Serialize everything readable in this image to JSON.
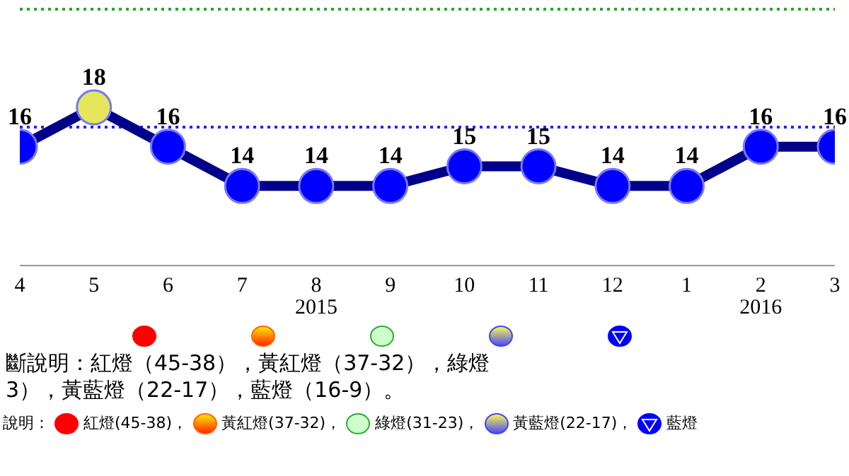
{
  "chart_data": {
    "type": "line",
    "categories": [
      "4",
      "5",
      "6",
      "7",
      "8",
      "9",
      "10",
      "11",
      "12",
      "1",
      "2",
      "3"
    ],
    "series": [
      {
        "color": "#00008b",
        "values": [
          16,
          18,
          16,
          14,
          14,
          14,
          15,
          15,
          14,
          14,
          16,
          16
        ],
        "colors": [
          "#0000ff",
          "#e6e65c",
          "#0000ff",
          "#0000ff",
          "#0000ff",
          "#0000ff",
          "#0000ff",
          "#0000ff",
          "#0000ff",
          "#0000ff",
          "#0000ff",
          "#0000ff"
        ]
      }
    ],
    "data_labels": true,
    "marker": "circle",
    "ref_lines": [
      {
        "axis": "y",
        "value": 23,
        "label": null,
        "color": "#22aa22",
        "line_style": "dotted"
      },
      {
        "axis": "y",
        "value": 17,
        "label": null,
        "color": "#2222ff",
        "line_style": "dotted"
      }
    ],
    "annotations": [
      "2015",
      "2016",
      "斷說明：紅燈（45-38），黃紅燈（37-32），綠燈",
      "3），黃藍燈（22-17），藍燈（16-9）。",
      "說明：",
      "紅燈(45-38)，",
      "黃紅燈(37-32)，",
      "綠燈(31-23)，",
      "黃藍燈(22-17)，",
      "藍燈"
    ]
  }
}
